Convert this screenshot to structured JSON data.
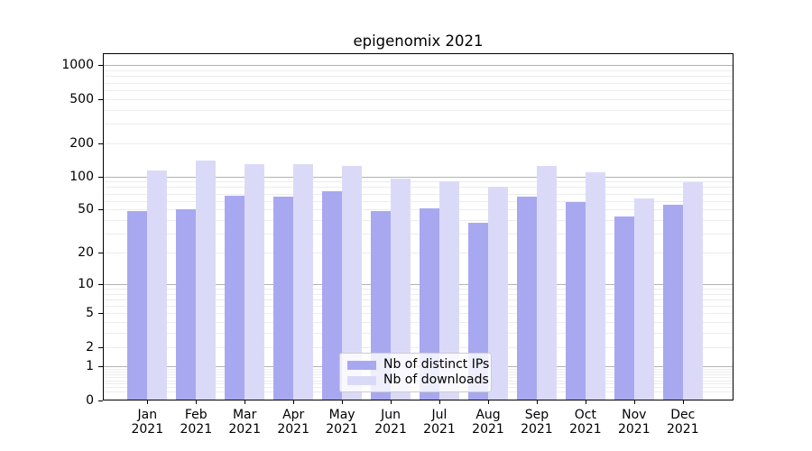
{
  "chart_data": {
    "type": "bar",
    "title": "epigenomix 2021",
    "categories": [
      "Jan\n2021",
      "Feb\n2021",
      "Mar\n2021",
      "Apr\n2021",
      "May\n2021",
      "Jun\n2021",
      "Jul\n2021",
      "Aug\n2021",
      "Sep\n2021",
      "Oct\n2021",
      "Nov\n2021",
      "Dec\n2021"
    ],
    "series": [
      {
        "name": "Nb of distinct IPs",
        "color": "#a8a8f0",
        "values": [
          48,
          50,
          67,
          65,
          73,
          48,
          51,
          38,
          65,
          59,
          43,
          55
        ]
      },
      {
        "name": "Nb of downloads",
        "color": "#dadaf8",
        "values": [
          113,
          140,
          129,
          128,
          124,
          96,
          91,
          80,
          124,
          110,
          63,
          89
        ]
      }
    ],
    "y_axis": {
      "scale": "log1p",
      "ticks": [
        0,
        1,
        2,
        5,
        10,
        20,
        50,
        100,
        200,
        500,
        1000
      ],
      "range": [
        0,
        1270
      ],
      "grid": "major-and-minor"
    },
    "x_axis": {
      "label": ""
    },
    "legend": {
      "position": "lower-center"
    },
    "colors": {
      "major_grid": "#b3b3b3",
      "minor_grid": "#ececec",
      "axis": "#000000"
    }
  }
}
